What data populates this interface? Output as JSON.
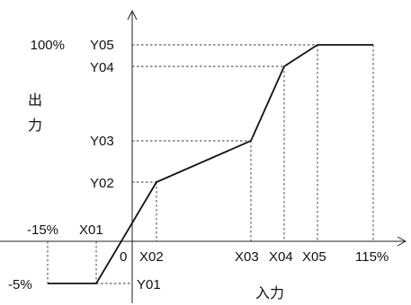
{
  "diagram": {
    "axis_labels": {
      "y_char_1": "出",
      "y_char_2": "力",
      "x": "入力"
    },
    "origin_label": "0",
    "x_labels": {
      "neg15": "-15%",
      "x01": "X01",
      "x02": "X02",
      "x03": "X03",
      "x04": "X04",
      "x05": "X05",
      "p115": "115%"
    },
    "y_labels": {
      "p100": "100%",
      "y05": "Y05",
      "y04": "Y04",
      "y03": "Y03",
      "y02": "Y02",
      "y01": "Y01",
      "neg5": "-5%"
    }
  }
}
